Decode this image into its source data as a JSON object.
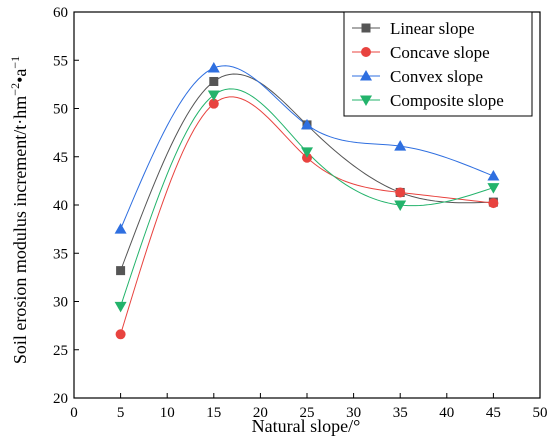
{
  "chart_data": {
    "type": "line",
    "xlabel": "Natural slope/°",
    "ylabel": "Soil erosion modulus increment/t·hm⁻²•a⁻¹",
    "ylabel_parts": {
      "main": "Soil erosion modulus increment/t·hm",
      "sup1": "−2",
      "mid": "•a",
      "sup2": "−1"
    },
    "xlim": [
      0,
      50
    ],
    "ylim": [
      20,
      60
    ],
    "xticks": [
      0,
      5,
      10,
      15,
      20,
      25,
      30,
      35,
      40,
      45,
      50
    ],
    "yticks": [
      20,
      25,
      30,
      35,
      40,
      45,
      50,
      55,
      60
    ],
    "grid": false,
    "legend_position": "top-right",
    "x": [
      5,
      15,
      25,
      35,
      45
    ],
    "series": [
      {
        "name": "Linear slope",
        "marker": "square",
        "color": "#555555",
        "values": [
          33.2,
          52.8,
          48.3,
          41.3,
          40.3
        ]
      },
      {
        "name": "Concave slope",
        "marker": "circle",
        "color": "#e8433f",
        "values": [
          26.6,
          50.5,
          44.9,
          41.3,
          40.2
        ]
      },
      {
        "name": "Convex slope",
        "marker": "triangle-up",
        "color": "#2f6fe0",
        "values": [
          37.5,
          54.2,
          48.3,
          46.1,
          43.0
        ]
      },
      {
        "name": "Composite slope",
        "marker": "triangle-down",
        "color": "#23b36b",
        "values": [
          29.5,
          51.4,
          45.5,
          40.0,
          41.8
        ]
      }
    ]
  }
}
